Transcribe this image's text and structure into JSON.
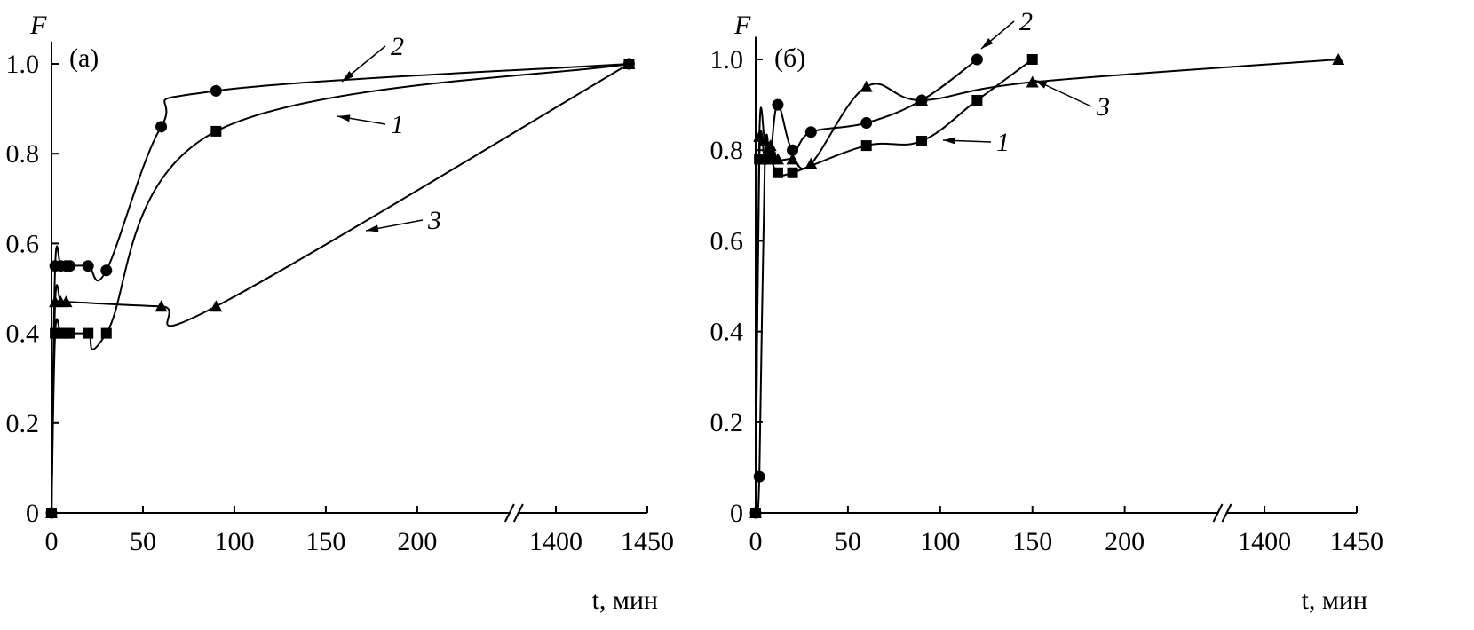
{
  "chart_data": [
    {
      "type": "line",
      "label": "(а)",
      "ylabel": "F",
      "xlabel": "t, мин",
      "xlim": [
        0,
        1450
      ],
      "xbreak": [
        250,
        1380
      ],
      "xticks": [
        0,
        50,
        100,
        150,
        200,
        1400,
        1450
      ],
      "ylim": [
        0,
        1.05
      ],
      "yticks": [
        0,
        0.2,
        0.4,
        0.6,
        0.8,
        {
          "value": 1,
          "label": "1.0"
        }
      ],
      "series": [
        {
          "name": "1",
          "marker": "square",
          "color": "#000000",
          "x": [
            0,
            2,
            5,
            8,
            10,
            20,
            30,
            90,
            1440
          ],
          "values": [
            0,
            0.4,
            0.4,
            0.4,
            0.4,
            0.4,
            0.4,
            0.85,
            1.0
          ]
        },
        {
          "name": "2",
          "marker": "circle",
          "color": "#000000",
          "x": [
            0,
            2,
            5,
            8,
            10,
            20,
            30,
            60,
            90,
            1440
          ],
          "values": [
            0,
            0.55,
            0.55,
            0.55,
            0.55,
            0.55,
            0.54,
            0.86,
            0.94,
            1.0
          ]
        },
        {
          "name": "3",
          "marker": "triangle",
          "color": "#000000",
          "x": [
            0,
            2,
            5,
            8,
            60,
            90,
            1440
          ],
          "values": [
            0,
            0.47,
            0.47,
            0.47,
            0.46,
            0.46,
            1.0
          ]
        }
      ]
    },
    {
      "type": "line",
      "label": "(б)",
      "ylabel": "F",
      "xlabel": "t, мин",
      "xlim": [
        0,
        1450
      ],
      "xbreak": [
        250,
        1380
      ],
      "xticks": [
        0,
        50,
        100,
        150,
        200,
        1400,
        1450
      ],
      "ylim": [
        0,
        1.05
      ],
      "yticks": [
        0,
        0.2,
        0.4,
        0.6,
        0.8,
        {
          "value": 1,
          "label": "1.0"
        }
      ],
      "series": [
        {
          "name": "1",
          "marker": "square",
          "color": "#000000",
          "x": [
            0,
            2,
            5,
            8,
            12,
            20,
            60,
            90,
            120,
            150
          ],
          "values": [
            0,
            0.78,
            0.78,
            0.78,
            0.75,
            0.75,
            0.81,
            0.82,
            0.91,
            1.0
          ]
        },
        {
          "name": "2",
          "marker": "circle",
          "color": "#000000",
          "x": [
            0,
            2,
            5,
            8,
            12,
            20,
            30,
            60,
            90,
            120
          ],
          "values": [
            0,
            0.08,
            0.78,
            0.79,
            0.9,
            0.8,
            0.84,
            0.86,
            0.91,
            1.0
          ]
        },
        {
          "name": "3",
          "marker": "triangle",
          "color": "#000000",
          "x": [
            0,
            2,
            5,
            8,
            12,
            20,
            30,
            60,
            90,
            150,
            1440
          ],
          "values": [
            0,
            0.83,
            0.82,
            0.81,
            0.78,
            0.78,
            0.77,
            0.94,
            0.91,
            0.95,
            1.0
          ]
        }
      ]
    }
  ]
}
